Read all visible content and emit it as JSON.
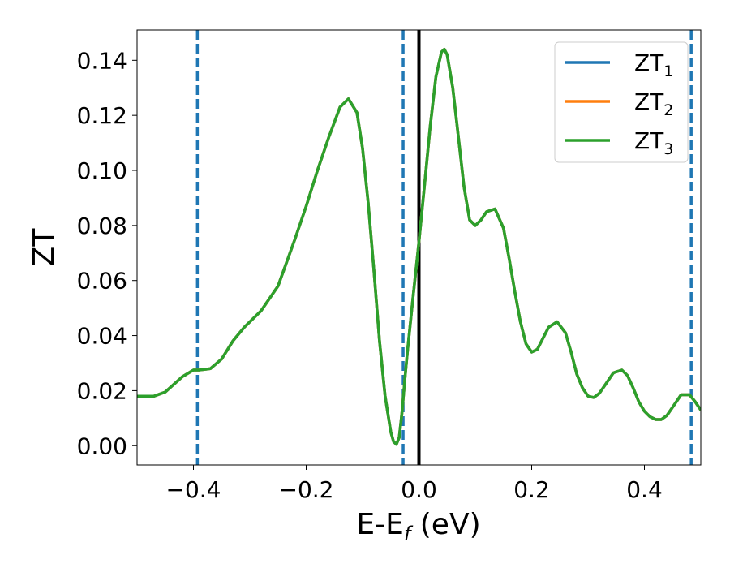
{
  "chart_data": {
    "type": "line",
    "xlabel": "E-E",
    "xlabel_sub": "f",
    "xlabel_unit": " (eV)",
    "ylabel": "ZT",
    "xlim": [
      -0.5,
      0.5
    ],
    "ylim": [
      -0.007,
      0.151
    ],
    "x_ticks": [
      -0.4,
      -0.2,
      0.0,
      0.2,
      0.4
    ],
    "x_tick_labels": [
      "−0.4",
      "−0.2",
      "0.0",
      "0.2",
      "0.4"
    ],
    "y_ticks": [
      0.0,
      0.02,
      0.04,
      0.06,
      0.08,
      0.1,
      0.12,
      0.14
    ],
    "y_tick_labels": [
      "0.00",
      "0.02",
      "0.04",
      "0.06",
      "0.08",
      "0.10",
      "0.12",
      "0.14"
    ],
    "legend_position": "top-right",
    "legend": [
      {
        "name": "ZT",
        "sub": "1",
        "color": "#1f77b4"
      },
      {
        "name": "ZT",
        "sub": "2",
        "color": "#ff7f0e"
      },
      {
        "name": "ZT",
        "sub": "3",
        "color": "#2ca02c"
      }
    ],
    "vlines": [
      {
        "x": -0.393,
        "style": "dashed",
        "color": "#1f77b4"
      },
      {
        "x": -0.028,
        "style": "dashed",
        "color": "#1f77b4"
      },
      {
        "x": 0.0,
        "style": "solid",
        "color": "#000000"
      },
      {
        "x": 0.483,
        "style": "dashed",
        "color": "#1f77b4"
      }
    ],
    "x": [
      -0.5,
      -0.47,
      -0.45,
      -0.42,
      -0.4,
      -0.39,
      -0.37,
      -0.35,
      -0.33,
      -0.31,
      -0.3,
      -0.28,
      -0.25,
      -0.22,
      -0.2,
      -0.18,
      -0.16,
      -0.14,
      -0.125,
      -0.11,
      -0.1,
      -0.09,
      -0.08,
      -0.07,
      -0.06,
      -0.05,
      -0.045,
      -0.04,
      -0.035,
      -0.03,
      -0.025,
      -0.02,
      -0.01,
      0.0,
      0.01,
      0.02,
      0.03,
      0.04,
      0.045,
      0.05,
      0.06,
      0.07,
      0.08,
      0.09,
      0.1,
      0.11,
      0.12,
      0.135,
      0.15,
      0.16,
      0.17,
      0.18,
      0.19,
      0.2,
      0.21,
      0.22,
      0.23,
      0.245,
      0.26,
      0.27,
      0.28,
      0.29,
      0.3,
      0.31,
      0.32,
      0.33,
      0.345,
      0.36,
      0.37,
      0.38,
      0.39,
      0.4,
      0.41,
      0.42,
      0.43,
      0.44,
      0.45,
      0.465,
      0.48,
      0.49,
      0.5
    ],
    "series": [
      {
        "values": [
          0.018,
          0.018,
          0.0195,
          0.025,
          0.0275,
          0.0275,
          0.028,
          0.0315,
          0.038,
          0.043,
          0.045,
          0.049,
          0.058,
          0.075,
          0.087,
          0.1,
          0.112,
          0.123,
          0.126,
          0.121,
          0.108,
          0.088,
          0.064,
          0.038,
          0.018,
          0.005,
          0.0015,
          0.0005,
          0.003,
          0.012,
          0.024,
          0.035,
          0.055,
          0.074,
          0.095,
          0.116,
          0.134,
          0.143,
          0.144,
          0.142,
          0.13,
          0.112,
          0.094,
          0.082,
          0.08,
          0.082,
          0.085,
          0.086,
          0.079,
          0.068,
          0.056,
          0.045,
          0.037,
          0.034,
          0.035,
          0.039,
          0.043,
          0.045,
          0.041,
          0.034,
          0.026,
          0.021,
          0.018,
          0.0175,
          0.019,
          0.022,
          0.0265,
          0.0275,
          0.0255,
          0.021,
          0.016,
          0.0125,
          0.0105,
          0.0095,
          0.0095,
          0.011,
          0.014,
          0.0185,
          0.0185,
          0.016,
          0.013
        ],
        "color": "#1f77b4"
      },
      {
        "values": [
          0.018,
          0.018,
          0.0195,
          0.025,
          0.0275,
          0.0275,
          0.028,
          0.0315,
          0.038,
          0.043,
          0.045,
          0.049,
          0.058,
          0.075,
          0.087,
          0.1,
          0.112,
          0.123,
          0.126,
          0.121,
          0.108,
          0.088,
          0.064,
          0.038,
          0.018,
          0.005,
          0.0015,
          0.0005,
          0.003,
          0.012,
          0.024,
          0.035,
          0.055,
          0.074,
          0.095,
          0.116,
          0.134,
          0.143,
          0.144,
          0.142,
          0.13,
          0.112,
          0.094,
          0.082,
          0.08,
          0.082,
          0.085,
          0.086,
          0.079,
          0.068,
          0.056,
          0.045,
          0.037,
          0.034,
          0.035,
          0.039,
          0.043,
          0.045,
          0.041,
          0.034,
          0.026,
          0.021,
          0.018,
          0.0175,
          0.019,
          0.022,
          0.0265,
          0.0275,
          0.0255,
          0.021,
          0.016,
          0.0125,
          0.0105,
          0.0095,
          0.0095,
          0.011,
          0.014,
          0.0185,
          0.0185,
          0.016,
          0.013
        ],
        "color": "#ff7f0e"
      },
      {
        "values": [
          0.018,
          0.018,
          0.0195,
          0.025,
          0.0275,
          0.0275,
          0.028,
          0.0315,
          0.038,
          0.043,
          0.045,
          0.049,
          0.058,
          0.075,
          0.087,
          0.1,
          0.112,
          0.123,
          0.126,
          0.121,
          0.108,
          0.088,
          0.064,
          0.038,
          0.018,
          0.005,
          0.0015,
          0.0005,
          0.003,
          0.012,
          0.024,
          0.035,
          0.055,
          0.074,
          0.095,
          0.116,
          0.134,
          0.143,
          0.144,
          0.142,
          0.13,
          0.112,
          0.094,
          0.082,
          0.08,
          0.082,
          0.085,
          0.086,
          0.079,
          0.068,
          0.056,
          0.045,
          0.037,
          0.034,
          0.035,
          0.039,
          0.043,
          0.045,
          0.041,
          0.034,
          0.026,
          0.021,
          0.018,
          0.0175,
          0.019,
          0.022,
          0.0265,
          0.0275,
          0.0255,
          0.021,
          0.016,
          0.0125,
          0.0105,
          0.0095,
          0.0095,
          0.011,
          0.014,
          0.0185,
          0.0185,
          0.016,
          0.013
        ],
        "color": "#2ca02c"
      }
    ]
  }
}
